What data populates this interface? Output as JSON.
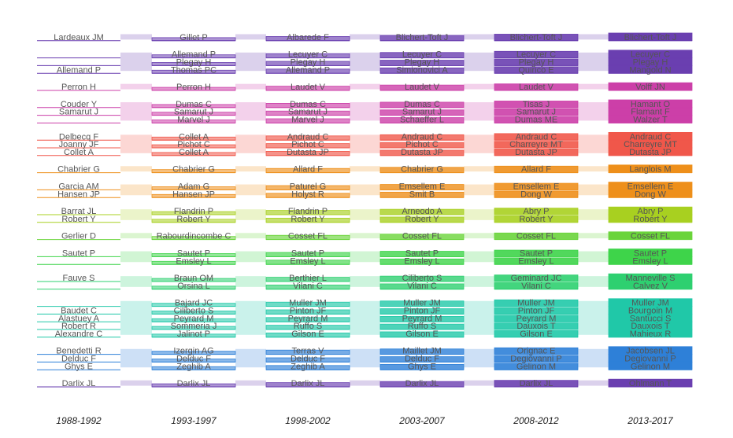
{
  "chart_data": {
    "type": "alluvial",
    "title": "",
    "periods": [
      "1988-1992",
      "1993-1997",
      "1998-2002",
      "2003-2007",
      "2008-2012",
      "2013-2017"
    ],
    "groups": [
      {
        "color": "#6a3fb0",
        "rows": [
          [
            "Lardeaux JM",
            "Gillet P",
            "Albarede F",
            "Blichert-Toft J",
            "Blichert-Toft J",
            "Blichert-Toft J"
          ]
        ]
      },
      {
        "color": "#6a3fb0",
        "rows": [
          [
            "",
            "Allemand P",
            "Lecuyer C",
            "Lecuyer C",
            "Lecuyer C",
            "Lecuyer C"
          ],
          [
            "",
            "Plegay H",
            "Plegay H",
            "Plegay H",
            "Plegay H",
            "Plegay H"
          ],
          [
            "Allemand P",
            "Thomas PC",
            "Allemand P",
            "Simionovici A",
            "Quirico E",
            "Mangold N"
          ]
        ]
      },
      {
        "color": "#cc3fa8",
        "rows": [
          [
            "Perron H",
            "Perron H",
            "Laudet V",
            "Laudet V",
            "Laudet V",
            "Volff JN"
          ]
        ]
      },
      {
        "color": "#cc3fa8",
        "rows": [
          [
            "Couder Y",
            "Dumas C",
            "Dumas C",
            "Dumas C",
            "Tisas J",
            "Hamant O"
          ],
          [
            "Samarut J",
            "Samarut J",
            "Samarut J",
            "Samarut J",
            "Samarut J",
            "Flamant F"
          ],
          [
            "",
            "Marvel J",
            "Marvel J",
            "Schaeffer L",
            "Dumas ME",
            "Walzer T"
          ]
        ]
      },
      {
        "color": "#f0574a",
        "rows": [
          [
            "Delbecq F",
            "Collet A",
            "Andraud C",
            "Andraud C",
            "Andraud C",
            "Andraud C"
          ],
          [
            "Joanny JF",
            "Pichot C",
            "Pichot C",
            "Pichot C",
            "Charreyre MT",
            "Charreyre MT"
          ],
          [
            "Collet A",
            "Collet A",
            "Dutasta JP",
            "Dutasta JP",
            "Dutasta JP",
            "Dutasta JP"
          ]
        ]
      },
      {
        "color": "#ee8f1a",
        "rows": [
          [
            "Chabrier G",
            "Chabrier G",
            "Allard F",
            "Chabrier G",
            "Allard F",
            "Langlois M"
          ]
        ]
      },
      {
        "color": "#ee8f1a",
        "rows": [
          [
            "Garcia AM",
            "Adam G",
            "Paturel G",
            "Emsellem E",
            "Emsellem E",
            "Emsellem E"
          ],
          [
            "Hansen JP",
            "Hansen JP",
            "Holyst R",
            "Smit B",
            "Dong W",
            "Dong W"
          ]
        ]
      },
      {
        "color": "#a8d020",
        "rows": [
          [
            "Barrat JL",
            "Flandrin P",
            "Flandrin P",
            "Arneodo A",
            "Abry P",
            "Abry P"
          ],
          [
            "Robert Y",
            "Robert Y",
            "Robert Y",
            "Robert Y",
            "Robert Y",
            "Robert Y"
          ]
        ]
      },
      {
        "color": "#6ad43a",
        "rows": [
          [
            "Gerlier D",
            "Rabourdincombe C",
            "Cosset FL",
            "Cosset FL",
            "Cosset FL",
            "Cosset FL"
          ]
        ]
      },
      {
        "color": "#3ed44a",
        "rows": [
          [
            "Sautet P",
            "Sautet P",
            "Sautet P",
            "Sautet P",
            "Sautet P",
            "Sautet P"
          ],
          [
            "",
            "Emsley L",
            "Emsley L",
            "Emsley L",
            "Emsley L",
            "Emsley L"
          ]
        ]
      },
      {
        "color": "#2ed070",
        "rows": [
          [
            "Fauve S",
            "Braun OM",
            "Berthier L",
            "Ciliberto S",
            "Geminard JC",
            "Manneville S"
          ],
          [
            "",
            "Orsina L",
            "Vilani C",
            "Vilani C",
            "Vilani C",
            "Calvez V"
          ]
        ]
      },
      {
        "color": "#20c8a8",
        "rows": [
          [
            "",
            "Bajard JC",
            "Muller JM",
            "Muller JM",
            "Muller JM",
            "Muller JM"
          ],
          [
            "Baudet C",
            "Ciliberto S",
            "Pinton JF",
            "Pinton JF",
            "Pinton JF",
            "Bourgoin M"
          ],
          [
            "Alastuey A",
            "Peyrard M",
            "Peyrard M",
            "Peyrard M",
            "Peyrard M",
            "Santucci S"
          ],
          [
            "Robert R",
            "Sommeria J",
            "Ruffo S",
            "Ruffo S",
            "Dauxois T",
            "Dauxois T"
          ],
          [
            "Alexandre C",
            "Jalinot P",
            "Gilson E",
            "Gilson E",
            "Gilson E",
            "Mahieux R"
          ]
        ]
      },
      {
        "color": "#2e80d8",
        "rows": [
          [
            "Benedetti R",
            "Izergin AG",
            "Terras V",
            "Maillet JM",
            "Orignac E",
            "Jacobsen JL"
          ],
          [
            "Delduc F",
            "Delduc F",
            "Delduc F",
            "Delduc F",
            "Degiovanni P",
            "Degiovanni P"
          ],
          [
            "Ghys E",
            "Zeghib A",
            "Zeghib A",
            "Ghys E",
            "Gelinon M",
            "Gelinon M"
          ]
        ]
      },
      {
        "color": "#6a3fb0",
        "rows": [
          [
            "Darlix JL",
            "Darlix JL",
            "Darlix JL",
            "Darlix JL",
            "Darlix JL",
            "Ohlmann T"
          ]
        ]
      }
    ]
  }
}
